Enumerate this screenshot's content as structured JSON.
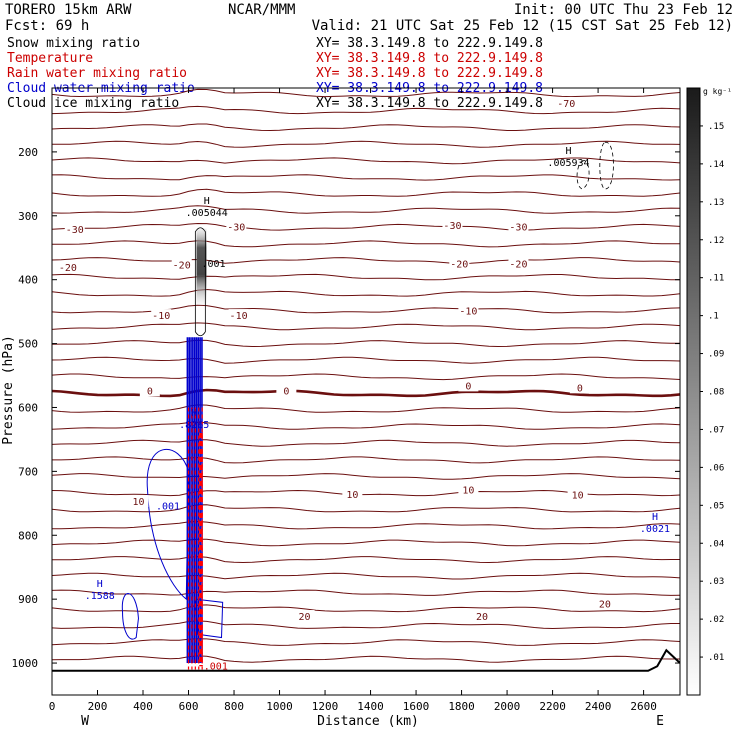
{
  "header": {
    "model": "TORERO  15km ARW",
    "center": "NCAR/MMM",
    "init": "Init: 00 UTC Thu 23 Feb 12",
    "fcst": "Fcst:   69 h",
    "valid": "Valid: 21 UTC Sat 25 Feb 12 (15 CST Sat 25 Feb 12)"
  },
  "legend": [
    {
      "label": "Snow mixing ratio",
      "xy": "XY=  38.3.149.8 to 222.9.149.8",
      "color": "#000000"
    },
    {
      "label": "Temperature",
      "xy": "XY=  38.3.149.8 to 222.9.149.8",
      "color": "#cc0000"
    },
    {
      "label": "Rain water mixing ratio",
      "xy": "XY=  38.3.149.8 to 222.9.149.8",
      "color": "#cc0000"
    },
    {
      "label": "Cloud water mixing ratio",
      "xy": "XY=  38.3.149.8 to 222.9.149.8",
      "color": "#0000cc"
    },
    {
      "label": "Cloud ice mixing ratio",
      "xy": "XY=  38.3.149.8 to 222.9.149.8",
      "color": "#000000"
    }
  ],
  "colors": {
    "isotherm": "#6b0f0f",
    "rain": "#ff0000",
    "cloud_water": "#0000cc",
    "ground": "#000000",
    "axis": "#000000"
  },
  "chart_data": {
    "type": "heatmap",
    "xlabel": "Distance (km)",
    "ylabel": "Pressure (hPa)",
    "xlim": [
      0,
      2760
    ],
    "ylim": [
      1050,
      100
    ],
    "xticks": [
      0,
      200,
      400,
      600,
      800,
      1000,
      1200,
      1400,
      1600,
      1800,
      2000,
      2200,
      2400,
      2600
    ],
    "yticks": [
      200,
      300,
      400,
      500,
      600,
      700,
      800,
      900,
      1000
    ],
    "end_labels": {
      "left": "W",
      "right": "E"
    },
    "colorbar": {
      "unit": "g kg⁻¹",
      "ticks": [
        ".01",
        ".02",
        ".03",
        ".04",
        ".05",
        ".06",
        ".07",
        ".08",
        ".09",
        ".1",
        ".11",
        ".12",
        ".13",
        ".14",
        ".15"
      ],
      "range": [
        0,
        0.16
      ]
    },
    "isotherm_labels": [
      {
        "text": "-70",
        "x": 2260,
        "p": 125
      },
      {
        "text": "-30",
        "x": 100,
        "p": 322
      },
      {
        "text": "-30",
        "x": 810,
        "p": 318
      },
      {
        "text": "-30",
        "x": 1760,
        "p": 316
      },
      {
        "text": "-30",
        "x": 2050,
        "p": 318
      },
      {
        "text": "-20",
        "x": 70,
        "p": 382
      },
      {
        "text": "-20",
        "x": 570,
        "p": 378
      },
      {
        "text": "-20",
        "x": 1790,
        "p": 376
      },
      {
        "text": "-20",
        "x": 2050,
        "p": 376
      },
      {
        "text": "-10",
        "x": 480,
        "p": 457
      },
      {
        "text": "-10",
        "x": 820,
        "p": 457
      },
      {
        "text": "-10",
        "x": 1830,
        "p": 450
      },
      {
        "text": "0",
        "x": 430,
        "p": 575
      },
      {
        "text": "0",
        "x": 1030,
        "p": 575
      },
      {
        "text": "0",
        "x": 1830,
        "p": 567
      },
      {
        "text": "0",
        "x": 2320,
        "p": 570
      },
      {
        "text": "10",
        "x": 380,
        "p": 748
      },
      {
        "text": "10",
        "x": 1320,
        "p": 737
      },
      {
        "text": "10",
        "x": 1830,
        "p": 730
      },
      {
        "text": "10",
        "x": 2310,
        "p": 738
      },
      {
        "text": "20",
        "x": 1110,
        "p": 928
      },
      {
        "text": "20",
        "x": 1890,
        "p": 928
      },
      {
        "text": "20",
        "x": 2430,
        "p": 908
      }
    ],
    "extrema": [
      {
        "kind": "H",
        "value": ".005934",
        "x": 2270,
        "p": 222,
        "color": "#000000"
      },
      {
        "kind": "H",
        "value": ".005044",
        "x": 680,
        "p": 300,
        "color": "#000000"
      },
      {
        "kind": "",
        "value": ".001",
        "x": 710,
        "p": 380,
        "color": "#000000"
      },
      {
        "kind": "H",
        "value": ".8265",
        "x": 625,
        "p": 632,
        "color": "#0000cc"
      },
      {
        "kind": "",
        "value": ".001",
        "x": 510,
        "p": 760,
        "color": "#0000cc"
      },
      {
        "kind": "H",
        "value": ".0021",
        "x": 2650,
        "p": 795,
        "color": "#0000cc"
      },
      {
        "kind": "H",
        "value": ".1588",
        "x": 210,
        "p": 900,
        "color": "#0000cc"
      },
      {
        "kind": "",
        "value": ".001",
        "x": 720,
        "p": 1010,
        "color": "#cc0000"
      }
    ]
  }
}
